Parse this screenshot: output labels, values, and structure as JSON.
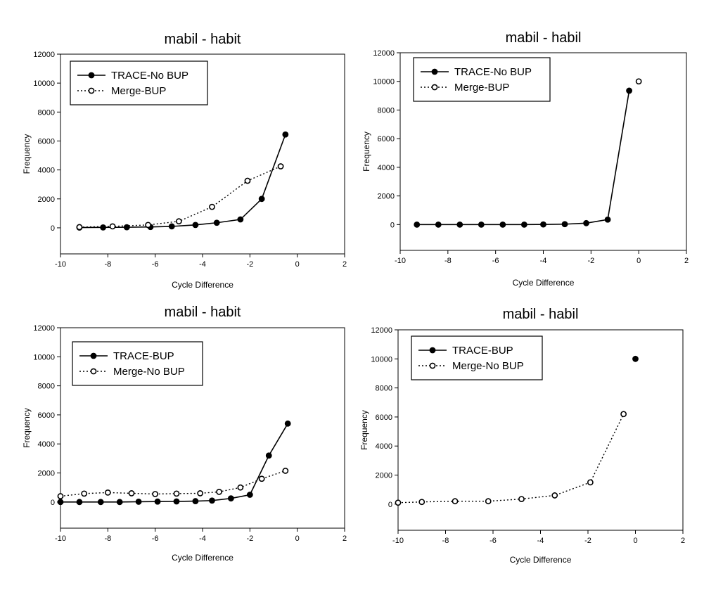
{
  "chart_data": [
    {
      "type": "line",
      "title": "mabil - habit",
      "xlabel": "Cycle Difference",
      "ylabel": "Frequency",
      "xlim": [
        -10,
        2
      ],
      "ylim": [
        -1800,
        12000
      ],
      "xticks": [
        -10,
        -8,
        -6,
        -4,
        -2,
        0,
        2
      ],
      "yticks": [
        0,
        2000,
        4000,
        6000,
        8000,
        10000,
        12000
      ],
      "grid": false,
      "legend": "top-left",
      "series": [
        {
          "name": "TRACE-No BUP",
          "marker": "filled",
          "line": "solid",
          "x": [
            -9.2,
            -8.2,
            -7.2,
            -6.2,
            -5.3,
            -4.3,
            -3.4,
            -2.4,
            -1.5,
            -0.5
          ],
          "y": [
            20,
            30,
            40,
            60,
            100,
            200,
            350,
            580,
            2000,
            6450
          ]
        },
        {
          "name": "Merge-BUP",
          "marker": "open",
          "line": "dotted",
          "x": [
            -9.2,
            -7.8,
            -6.3,
            -5.0,
            -3.6,
            -2.1,
            -0.7
          ],
          "y": [
            50,
            100,
            200,
            450,
            1450,
            3250,
            4250
          ]
        }
      ]
    },
    {
      "type": "line",
      "title": "mabil - habil",
      "xlabel": "Cycle Difference",
      "ylabel": "Frequency",
      "xlim": [
        -10,
        2
      ],
      "ylim": [
        -1800,
        12000
      ],
      "xticks": [
        -10,
        -8,
        -6,
        -4,
        -2,
        0,
        2
      ],
      "yticks": [
        0,
        2000,
        4000,
        6000,
        8000,
        10000,
        12000
      ],
      "grid": false,
      "legend": "top-left",
      "series": [
        {
          "name": "TRACE-No BUP",
          "marker": "filled",
          "line": "solid",
          "x": [
            -9.3,
            -8.4,
            -7.5,
            -6.6,
            -5.7,
            -4.8,
            -4.0,
            -3.1,
            -2.2,
            -1.3,
            -0.4
          ],
          "y": [
            0,
            0,
            0,
            0,
            0,
            0,
            10,
            30,
            100,
            350,
            9350
          ]
        },
        {
          "name": "Merge-BUP",
          "marker": "open",
          "line": "dotted",
          "x": [
            0.0
          ],
          "y": [
            10000
          ]
        }
      ]
    },
    {
      "type": "line",
      "title": "mabil - habit",
      "xlabel": "Cycle Difference",
      "ylabel": "Frequency",
      "xlim": [
        -10,
        2
      ],
      "ylim": [
        -1800,
        12000
      ],
      "xticks": [
        -10,
        -8,
        -6,
        -4,
        -2,
        0,
        2
      ],
      "yticks": [
        0,
        2000,
        4000,
        6000,
        8000,
        10000,
        12000
      ],
      "grid": false,
      "legend": "top-left",
      "series": [
        {
          "name": "TRACE-BUP",
          "marker": "filled",
          "line": "solid",
          "x": [
            -10.0,
            -9.2,
            -8.3,
            -7.5,
            -6.7,
            -5.9,
            -5.1,
            -4.3,
            -3.6,
            -2.8,
            -2.0,
            -1.2,
            -0.4
          ],
          "y": [
            0,
            0,
            0,
            0,
            20,
            30,
            40,
            60,
            100,
            250,
            500,
            3200,
            5400
          ]
        },
        {
          "name": "Merge-No BUP",
          "marker": "open",
          "line": "dotted",
          "x": [
            -10.0,
            -9.0,
            -8.0,
            -7.0,
            -6.0,
            -5.1,
            -4.1,
            -3.3,
            -2.4,
            -1.5,
            -0.5
          ],
          "y": [
            400,
            580,
            650,
            600,
            550,
            580,
            600,
            700,
            1000,
            1600,
            2150
          ]
        }
      ]
    },
    {
      "type": "line",
      "title": "mabil - habil",
      "xlabel": "Cycle Difference",
      "ylabel": "Frequency",
      "xlim": [
        -10,
        2
      ],
      "ylim": [
        -1800,
        12000
      ],
      "xticks": [
        -10,
        -8,
        -6,
        -4,
        -2,
        0,
        2
      ],
      "yticks": [
        0,
        2000,
        4000,
        6000,
        8000,
        10000,
        12000
      ],
      "grid": false,
      "legend": "top-left",
      "series": [
        {
          "name": "TRACE-BUP",
          "marker": "filled",
          "line": "solid",
          "x": [
            0.0
          ],
          "y": [
            10000
          ]
        },
        {
          "name": "Merge-No BUP",
          "marker": "open",
          "line": "dotted",
          "x": [
            -10.0,
            -9.0,
            -7.6,
            -6.2,
            -4.8,
            -3.4,
            -1.9,
            -0.5
          ],
          "y": [
            100,
            150,
            200,
            200,
            350,
            600,
            1500,
            6200
          ]
        }
      ]
    }
  ]
}
